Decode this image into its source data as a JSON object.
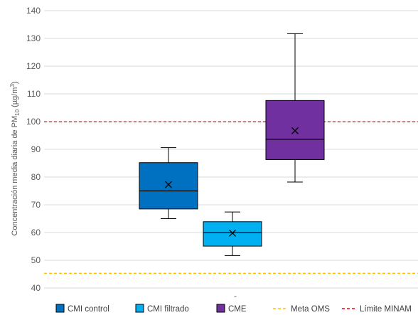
{
  "chart_data": {
    "type": "boxplot",
    "ylabel": {
      "prefix": "Concentración media diaria de PM",
      "subscript": "10",
      "units_open": " (µg/m",
      "units_sup": "3",
      "units_close": ")"
    },
    "ylim": [
      40,
      140
    ],
    "yticks": [
      40,
      50,
      60,
      70,
      80,
      90,
      100,
      110,
      120,
      130,
      140
    ],
    "grid": true,
    "legend_position": "bottom",
    "series": [
      {
        "name": "CMI control",
        "color": "#0070C0",
        "min": 65,
        "q1": 68.5,
        "median": 75,
        "mean": 77.3,
        "q3": 85.2,
        "max": 90.6
      },
      {
        "name": "CMI filtrado",
        "color": "#00B0F0",
        "min": 51.7,
        "q1": 55.1,
        "median": 59.9,
        "mean": 59.8,
        "q3": 63.9,
        "max": 67.4
      },
      {
        "name": "CME",
        "color": "#7030A0",
        "min": 78.2,
        "q1": 86.3,
        "median": 93.6,
        "mean": 96.7,
        "q3": 107.6,
        "max": 131.7
      }
    ],
    "reference_lines": [
      {
        "name": "Meta OMS",
        "value": 45.3,
        "color": "#FFC000"
      },
      {
        "name": "Límite MINAM",
        "value": 99.9,
        "color": "#FF0000"
      }
    ]
  }
}
